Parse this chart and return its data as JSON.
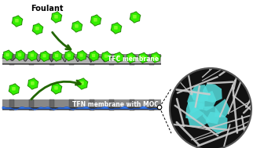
{
  "title": "",
  "bg_color": "#ffffff",
  "foulant_color": "#33ee00",
  "foulant_edge": "#228800",
  "arrow_color": "#226600",
  "membrane_gray": "#888888",
  "tfc_label": "TFC membrane",
  "tfn_label": "TFN membrane with MOC",
  "foulant_label": "Foulant",
  "circle_bg": "#111111",
  "circle_fiber": "#cccccc",
  "circle_cage": "#55dddd",
  "figsize": [
    3.22,
    1.89
  ],
  "dpi": 100
}
